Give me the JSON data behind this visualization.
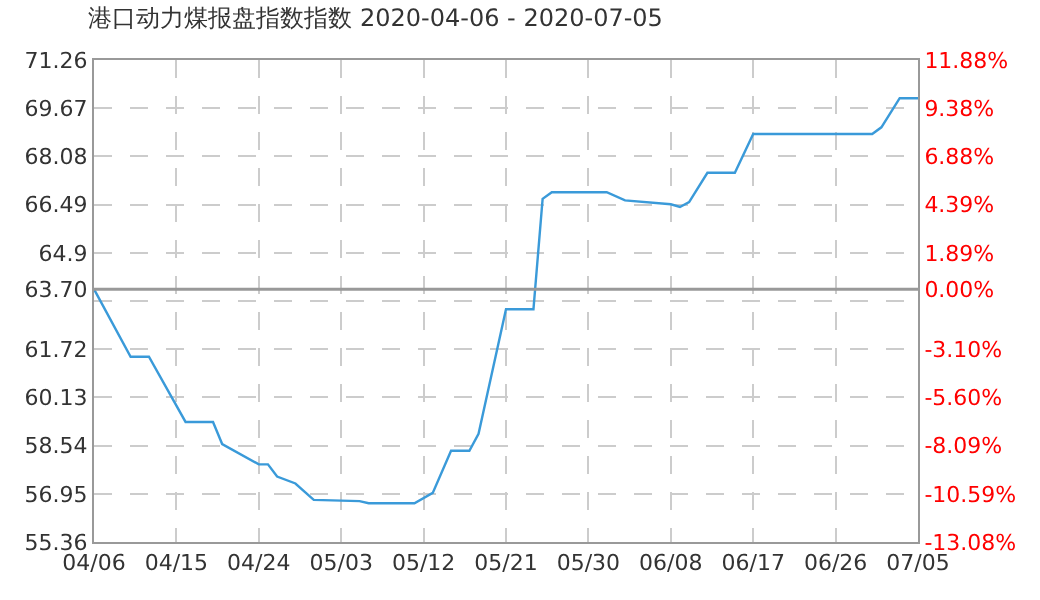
{
  "chart_data": {
    "type": "line",
    "title": "港口动力煤报盘指数指数 2020-04-06 - 2020-07-05",
    "x": [
      "2020-04-06",
      "2020-04-10",
      "2020-04-12",
      "2020-04-16",
      "2020-04-19",
      "2020-04-20",
      "2020-04-24",
      "2020-04-25",
      "2020-04-26",
      "2020-04-28",
      "2020-04-30",
      "2020-05-05",
      "2020-05-06",
      "2020-05-11",
      "2020-05-13",
      "2020-05-15",
      "2020-05-17",
      "2020-05-18",
      "2020-05-21",
      "2020-05-24",
      "2020-05-25",
      "2020-05-26",
      "2020-06-01",
      "2020-06-03",
      "2020-06-08",
      "2020-06-09",
      "2020-06-10",
      "2020-06-12",
      "2020-06-15",
      "2020-06-17",
      "2020-06-30",
      "2020-07-01",
      "2020-07-03",
      "2020-07-05"
    ],
    "series": [
      {
        "color": "#3a9ad9",
        "values": [
          63.7,
          61.47,
          61.47,
          59.32,
          59.32,
          58.59,
          57.92,
          57.92,
          57.52,
          57.29,
          56.75,
          56.71,
          56.64,
          56.64,
          56.98,
          58.37,
          58.37,
          58.93,
          63.04,
          63.04,
          66.68,
          66.9,
          66.9,
          66.63,
          66.5,
          66.41,
          66.57,
          67.54,
          67.54,
          68.82,
          68.82,
          69.04,
          70.0,
          70.0
        ]
      }
    ],
    "xlim": [
      "2020-04-06",
      "2020-07-05"
    ],
    "xticks": [
      {
        "value": "2020-04-06",
        "label": "04/06"
      },
      {
        "value": "2020-04-15",
        "label": "04/15"
      },
      {
        "value": "2020-04-24",
        "label": "04/24"
      },
      {
        "value": "2020-05-03",
        "label": "05/03"
      },
      {
        "value": "2020-05-12",
        "label": "05/12"
      },
      {
        "value": "2020-05-21",
        "label": "05/21"
      },
      {
        "value": "2020-05-30",
        "label": "05/30"
      },
      {
        "value": "2020-06-08",
        "label": "06/08"
      },
      {
        "value": "2020-06-17",
        "label": "06/17"
      },
      {
        "value": "2020-06-26",
        "label": "06/26"
      },
      {
        "value": "2020-07-05",
        "label": "07/05"
      }
    ],
    "ylim": [
      55.36,
      71.26
    ],
    "yticks": [
      55.36,
      56.95,
      58.54,
      60.13,
      61.72,
      {
        "value": 63.31,
        "label": null
      },
      {
        "value": 63.7,
        "label": "63.70"
      },
      64.9,
      66.49,
      68.08,
      69.67,
      71.26
    ],
    "y2lim": [
      -13.08,
      11.88
    ],
    "y2ticks": [
      {
        "value": -13.08,
        "label": "-13.08%"
      },
      {
        "value": -10.59,
        "label": "-10.59%"
      },
      {
        "value": -8.09,
        "label": "-8.09%"
      },
      {
        "value": -5.6,
        "label": "-5.60%"
      },
      {
        "value": -3.1,
        "label": "-3.10%"
      },
      {
        "value": 0,
        "label": "0.00%"
      },
      {
        "value": 1.89,
        "label": "1.89%"
      },
      {
        "value": 4.39,
        "label": "4.39%"
      },
      {
        "value": 6.88,
        "label": "6.88%"
      },
      {
        "value": 9.38,
        "label": "9.38%"
      },
      {
        "value": 11.88,
        "label": "11.88%"
      }
    ],
    "ref_lines": [
      {
        "axis": "y",
        "value": 63.7,
        "color": "#999999"
      }
    ],
    "grid": true,
    "legend": false,
    "marker": "none",
    "line_style": "solid"
  }
}
